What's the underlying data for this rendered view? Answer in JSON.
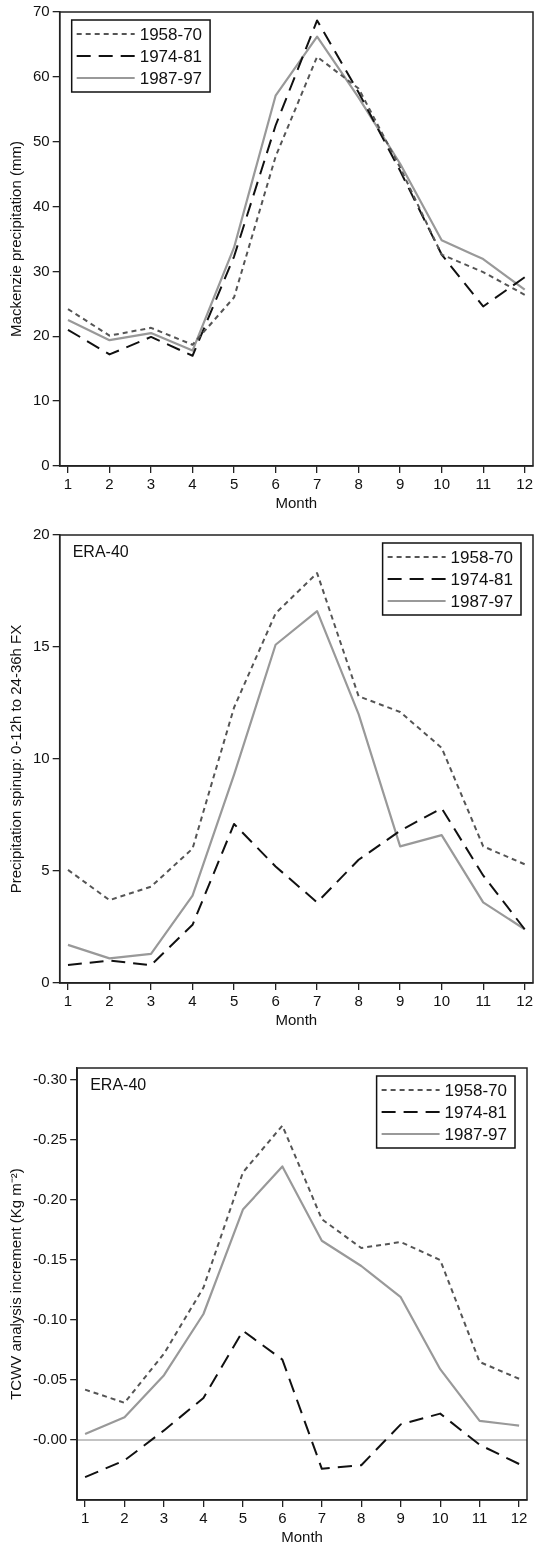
{
  "chart_data": [
    {
      "type": "line",
      "xlabel": "Month",
      "ylabel": "Mackenzie precipitation (mm)",
      "x": [
        1,
        2,
        3,
        4,
        5,
        6,
        7,
        8,
        9,
        10,
        11,
        12
      ],
      "xlim": [
        0.8,
        12.2
      ],
      "xticks": [
        1,
        2,
        3,
        4,
        5,
        6,
        7,
        8,
        9,
        10,
        11,
        12
      ],
      "ylim": [
        0,
        70
      ],
      "yticks": [
        0,
        10,
        20,
        30,
        40,
        50,
        60,
        70
      ],
      "grid": false,
      "legend": "top left",
      "marker": "none",
      "series": [
        {
          "name": "1958-70",
          "color": "#555555",
          "line_style": "dotted",
          "values": [
            24.2,
            20.1,
            21.3,
            18.7,
            26,
            47.7,
            63.1,
            58.2,
            46,
            32.6,
            29.9,
            26.4
          ]
        },
        {
          "name": "1974-81",
          "color": "#111111",
          "line_style": "dashed",
          "values": [
            21,
            17.2,
            19.9,
            17,
            32.3,
            52.5,
            68.7,
            57.6,
            45.5,
            32.6,
            24.6,
            29.1
          ]
        },
        {
          "name": "1987-97",
          "color": "#999999",
          "line_style": "solid",
          "values": [
            22.5,
            19.4,
            20.5,
            17.8,
            33.7,
            57.1,
            66.2,
            56.8,
            46.6,
            34.8,
            31.9,
            27.2
          ]
        }
      ]
    },
    {
      "type": "line",
      "xlabel": "Month",
      "ylabel": "Precipitation spinup: 0-12h to 24-36h FX",
      "annotations": [
        "ERA-40"
      ],
      "x": [
        1,
        2,
        3,
        4,
        5,
        6,
        7,
        8,
        9,
        10,
        11,
        12
      ],
      "xlim": [
        0.8,
        12.2
      ],
      "xticks": [
        1,
        2,
        3,
        4,
        5,
        6,
        7,
        8,
        9,
        10,
        11,
        12
      ],
      "ylim": [
        0,
        20
      ],
      "yticks": [
        0,
        5,
        10,
        15,
        20
      ],
      "grid": false,
      "legend": "top right",
      "marker": "none",
      "series": [
        {
          "name": "1958-70",
          "color": "#555555",
          "line_style": "dotted",
          "values": [
            5.05,
            3.7,
            4.3,
            6.0,
            12.3,
            16.5,
            18.3,
            12.8,
            12.1,
            10.5,
            6.1,
            5.3
          ]
        },
        {
          "name": "1974-81",
          "color": "#111111",
          "line_style": "dashed",
          "values": [
            0.8,
            1.0,
            0.8,
            2.6,
            7.1,
            5.2,
            3.6,
            5.5,
            6.8,
            7.8,
            4.8,
            2.4
          ]
        },
        {
          "name": "1987-97",
          "color": "#999999",
          "line_style": "solid",
          "values": [
            1.7,
            1.1,
            1.3,
            3.9,
            9.3,
            15.1,
            16.6,
            12.0,
            6.1,
            6.6,
            3.6,
            2.4
          ]
        }
      ]
    },
    {
      "type": "line",
      "xlabel": "Month",
      "ylabel": "TCWV analysis increment (Kg m⁻²)",
      "annotations": [
        "ERA-40"
      ],
      "x": [
        1,
        2,
        3,
        4,
        5,
        6,
        7,
        8,
        9,
        10,
        11,
        12
      ],
      "xlim": [
        0.8,
        12.2
      ],
      "xticks": [
        1,
        2,
        3,
        4,
        5,
        6,
        7,
        8,
        9,
        10,
        11,
        12
      ],
      "ylim": [
        0.05,
        -0.31
      ],
      "yticks": [
        {
          "value": -0.3,
          "label": "-0.30"
        },
        {
          "value": -0.25,
          "label": "-0.25"
        },
        {
          "value": -0.2,
          "label": "-0.20"
        },
        {
          "value": -0.15,
          "label": "-0.15"
        },
        {
          "value": -0.1,
          "label": "-0.10"
        },
        {
          "value": -0.05,
          "label": "-0.05"
        },
        {
          "value": 0,
          "label": "-0.00"
        }
      ],
      "grid": false,
      "legend": "top right",
      "marker": "none",
      "ref_lines": [
        {
          "axis": "y",
          "value": 0,
          "color": "#888888"
        }
      ],
      "series": [
        {
          "name": "1958-70",
          "color": "#555555",
          "line_style": "dotted",
          "values": [
            -0.042,
            -0.031,
            -0.072,
            -0.127,
            -0.223,
            -0.262,
            -0.184,
            -0.16,
            -0.165,
            -0.15,
            -0.065,
            -0.051
          ]
        },
        {
          "name": "1974-81",
          "color": "#111111",
          "line_style": "dashed",
          "values": [
            0.031,
            0.017,
            -0.008,
            -0.035,
            -0.091,
            -0.067,
            0.024,
            0.021,
            -0.013,
            -0.022,
            0.004,
            0.02
          ]
        },
        {
          "name": "1987-97",
          "color": "#999999",
          "line_style": "solid",
          "values": [
            -0.005,
            -0.019,
            -0.054,
            -0.105,
            -0.192,
            -0.228,
            -0.166,
            -0.145,
            -0.119,
            -0.059,
            -0.016,
            -0.012
          ]
        }
      ]
    }
  ]
}
